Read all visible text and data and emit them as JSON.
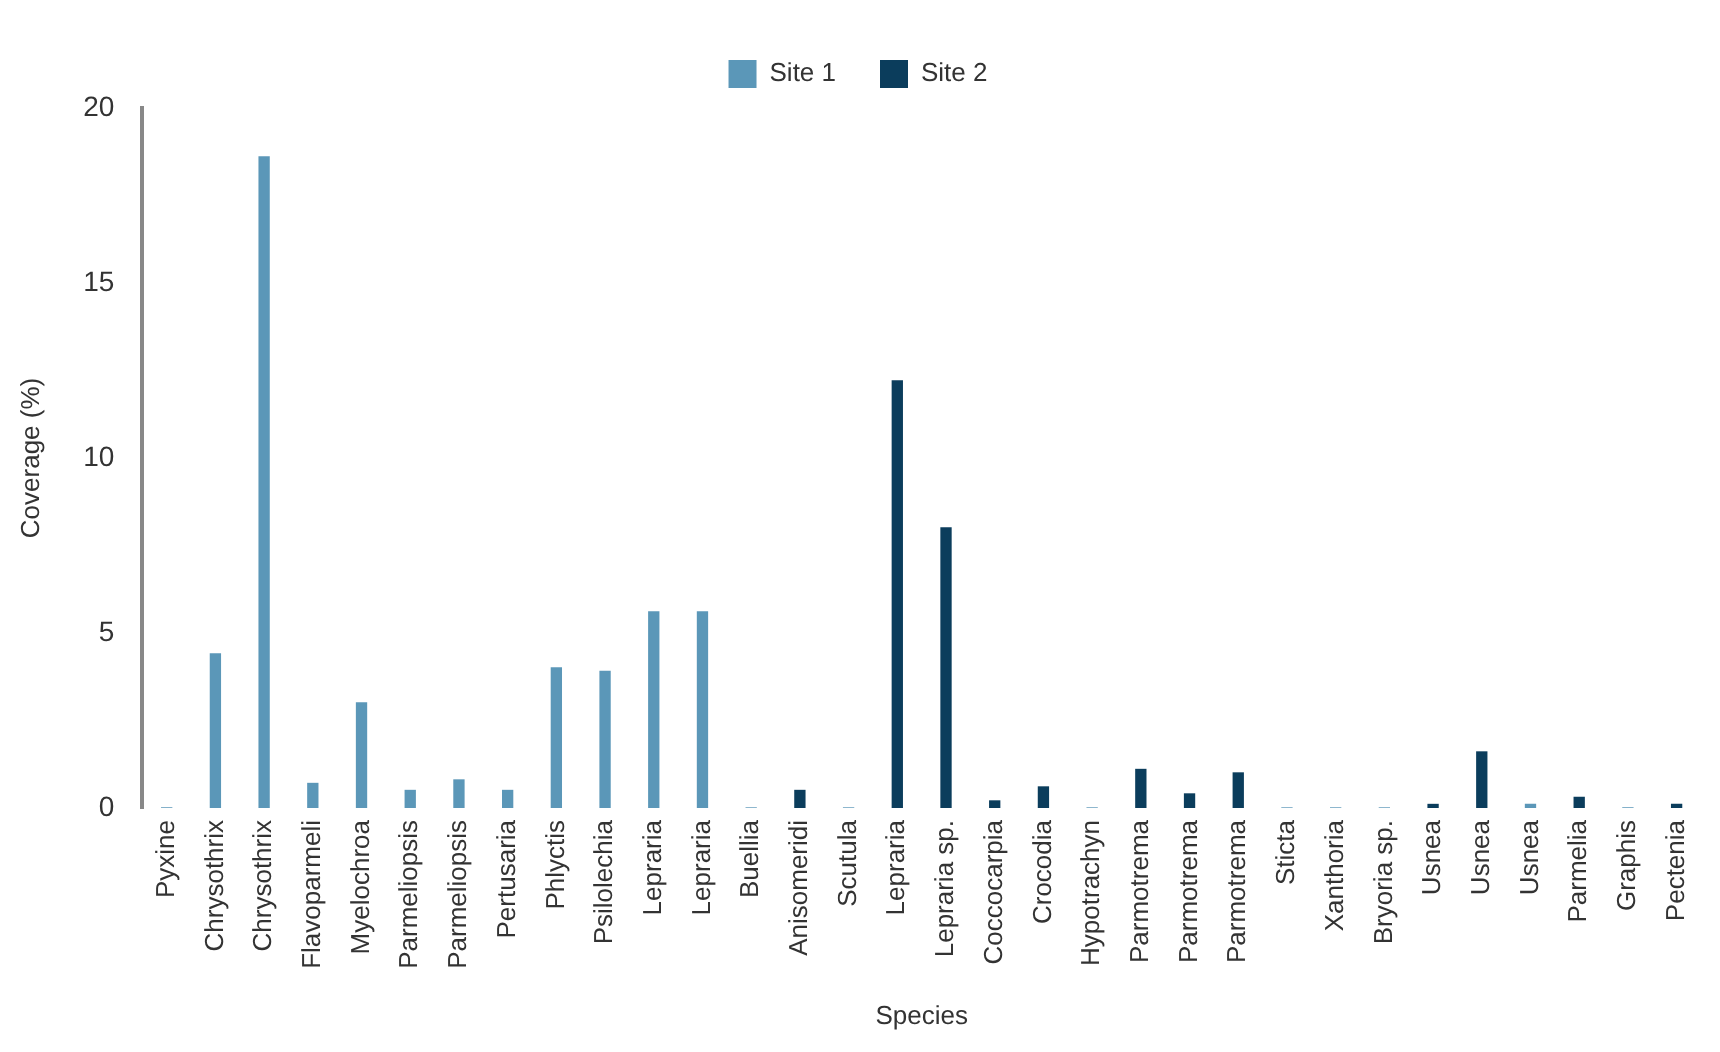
{
  "chart_data": {
    "type": "bar",
    "xlabel": "Species",
    "ylabel": "Coverage (%)",
    "categories": [
      "Pyxine",
      "Chrysothrix",
      "Chrysothrix",
      "Flavoparmeli",
      "Myelochroa",
      "Parmeliopsis",
      "Parmeliopsis",
      "Pertusaria",
      "Phlyctis",
      "Psilolechia",
      "Lepraria",
      "Lepraria",
      "Buellia",
      "Anisomeridi",
      "Scutula",
      "Lepraria",
      "Lepraria sp.",
      "Coccocarpia",
      "Crocodia",
      "Hypotrachyn",
      "Parmotrema",
      "Parmotrema",
      "Parmotrema",
      "Sticta",
      "Xanthoria",
      "Bryoria sp.",
      "Usnea",
      "Usnea",
      "Usnea",
      "Parmelia",
      "Graphis",
      "Pectenia"
    ],
    "series": [
      {
        "name": "Site 1",
        "color": "#5b97b8",
        "values": [
          0,
          4.4,
          18.6,
          0.7,
          3.0,
          0.5,
          0.8,
          0.5,
          4.0,
          3.9,
          5.6,
          5.6,
          0,
          null,
          0,
          null,
          null,
          null,
          null,
          0,
          null,
          null,
          null,
          0,
          0,
          0,
          null,
          null,
          0.1,
          null,
          0,
          null
        ]
      },
      {
        "name": "Site 2",
        "color": "#0b3d5c",
        "values": [
          null,
          null,
          null,
          null,
          null,
          null,
          null,
          null,
          null,
          null,
          null,
          null,
          null,
          0.5,
          null,
          12.2,
          8.0,
          0.2,
          0.6,
          null,
          1.1,
          0.4,
          1.0,
          null,
          null,
          null,
          0.1,
          1.6,
          null,
          0.3,
          null,
          0.1
        ]
      }
    ],
    "ylim": [
      0,
      20
    ],
    "yticks": [
      0,
      5,
      10,
      15,
      20
    ],
    "grid": false,
    "legend": "top"
  }
}
